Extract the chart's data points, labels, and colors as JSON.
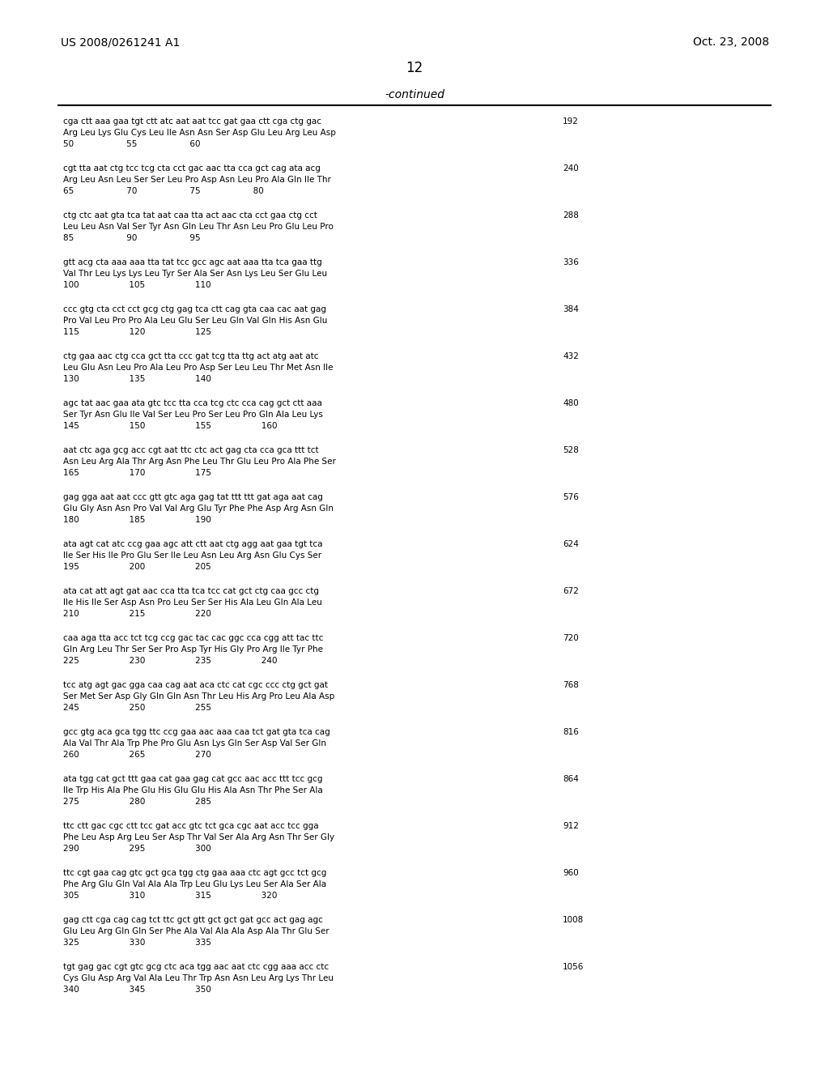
{
  "patent_number": "US 2008/0261241 A1",
  "date": "Oct. 23, 2008",
  "page_number": "12",
  "continued_label": "-continued",
  "background_color": "#ffffff",
  "text_color": "#000000",
  "sequences": [
    {
      "dna": "cga ctt aaa gaa tgt ctt atc aat aat tcc gat gaa ctt cga ctg gac",
      "protein": "Arg Leu Lys Glu Cys Leu Ile Asn Asn Ser Asp Glu Leu Arg Leu Asp",
      "numbers": "50                    55                    60",
      "count": "192"
    },
    {
      "dna": "cgt tta aat ctg tcc tcg cta cct gac aac tta cca gct cag ata acg",
      "protein": "Arg Leu Asn Leu Ser Ser Leu Pro Asp Asn Leu Pro Ala Gln Ile Thr",
      "numbers": "65                    70                    75                    80",
      "count": "240"
    },
    {
      "dna": "ctg ctc aat gta tca tat aat caa tta act aac cta cct gaa ctg cct",
      "protein": "Leu Leu Asn Val Ser Tyr Asn Gln Leu Thr Asn Leu Pro Glu Leu Pro",
      "numbers": "85                    90                    95",
      "count": "288"
    },
    {
      "dna": "gtt acg cta aaa aaa tta tat tcc gcc agc aat aaa tta tca gaa ttg",
      "protein": "Val Thr Leu Lys Lys Leu Tyr Ser Ala Ser Asn Lys Leu Ser Glu Leu",
      "numbers": "100                   105                   110",
      "count": "336"
    },
    {
      "dna": "ccc gtg cta cct cct gcg ctg gag tca ctt cag gta caa cac aat gag",
      "protein": "Pro Val Leu Pro Pro Ala Leu Glu Ser Leu Gln Val Gln His Asn Glu",
      "numbers": "115                   120                   125",
      "count": "384"
    },
    {
      "dna": "ctg gaa aac ctg cca gct tta ccc gat tcg tta ttg act atg aat atc",
      "protein": "Leu Glu Asn Leu Pro Ala Leu Pro Asp Ser Leu Leu Thr Met Asn Ile",
      "numbers": "130                   135                   140",
      "count": "432"
    },
    {
      "dna": "agc tat aac gaa ata gtc tcc tta cca tcg ctc cca cag gct ctt aaa",
      "protein": "Ser Tyr Asn Glu Ile Val Ser Leu Pro Ser Leu Pro Gln Ala Leu Lys",
      "numbers": "145                   150                   155                   160",
      "count": "480"
    },
    {
      "dna": "aat ctc aga gcg acc cgt aat ttc ctc act gag cta cca gca ttt tct",
      "protein": "Asn Leu Arg Ala Thr Arg Asn Phe Leu Thr Glu Leu Pro Ala Phe Ser",
      "numbers": "165                   170                   175",
      "count": "528"
    },
    {
      "dna": "gag gga aat aat ccc gtt gtc aga gag tat ttt ttt gat aga aat cag",
      "protein": "Glu Gly Asn Asn Pro Val Val Arg Glu Tyr Phe Phe Asp Arg Asn Gln",
      "numbers": "180                   185                   190",
      "count": "576"
    },
    {
      "dna": "ata agt cat atc ccg gaa agc att ctt aat ctg agg aat gaa tgt tca",
      "protein": "Ile Ser His Ile Pro Glu Ser Ile Leu Asn Leu Arg Asn Glu Cys Ser",
      "numbers": "195                   200                   205",
      "count": "624"
    },
    {
      "dna": "ata cat att agt gat aac cca tta tca tcc cat gct ctg caa gcc ctg",
      "protein": "Ile His Ile Ser Asp Asn Pro Leu Ser Ser His Ala Leu Gln Ala Leu",
      "numbers": "210                   215                   220",
      "count": "672"
    },
    {
      "dna": "caa aga tta acc tct tcg ccg gac tac cac ggc cca cgg att tac ttc",
      "protein": "Gln Arg Leu Thr Ser Ser Pro Asp Tyr His Gly Pro Arg Ile Tyr Phe",
      "numbers": "225                   230                   235                   240",
      "count": "720"
    },
    {
      "dna": "tcc atg agt gac gga caa cag aat aca ctc cat cgc ccc ctg gct gat",
      "protein": "Ser Met Ser Asp Gly Gln Gln Asn Thr Leu His Arg Pro Leu Ala Asp",
      "numbers": "245                   250                   255",
      "count": "768"
    },
    {
      "dna": "gcc gtg aca gca tgg ttc ccg gaa aac aaa caa tct gat gta tca cag",
      "protein": "Ala Val Thr Ala Trp Phe Pro Glu Asn Lys Gln Ser Asp Val Ser Gln",
      "numbers": "260                   265                   270",
      "count": "816"
    },
    {
      "dna": "ata tgg cat gct ttt gaa cat gaa gag cat gcc aac acc ttt tcc gcg",
      "protein": "Ile Trp His Ala Phe Glu His Glu Glu His Ala Asn Thr Phe Ser Ala",
      "numbers": "275                   280                   285",
      "count": "864"
    },
    {
      "dna": "ttc ctt gac cgc ctt tcc gat acc gtc tct gca cgc aat acc tcc gga",
      "protein": "Phe Leu Asp Arg Leu Ser Asp Thr Val Ser Ala Arg Asn Thr Ser Gly",
      "numbers": "290                   295                   300",
      "count": "912"
    },
    {
      "dna": "ttc cgt gaa cag gtc gct gca tgg ctg gaa aaa ctc agt gcc tct gcg",
      "protein": "Phe Arg Glu Gln Val Ala Ala Trp Leu Glu Lys Leu Ser Ala Ser Ala",
      "numbers": "305                   310                   315                   320",
      "count": "960"
    },
    {
      "dna": "gag ctt cga cag cag tct ttc gct gtt gct gct gat gcc act gag agc",
      "protein": "Glu Leu Arg Gln Gln Ser Phe Ala Val Ala Ala Asp Ala Thr Glu Ser",
      "numbers": "325                   330                   335",
      "count": "1008"
    },
    {
      "dna": "tgt gag gac cgt gtc gcg ctc aca tgg aac aat ctc cgg aaa acc ctc",
      "protein": "Cys Glu Asp Arg Val Ala Leu Thr Trp Asn Asn Leu Arg Lys Thr Leu",
      "numbers": "340                   345                   350",
      "count": "1056"
    }
  ]
}
